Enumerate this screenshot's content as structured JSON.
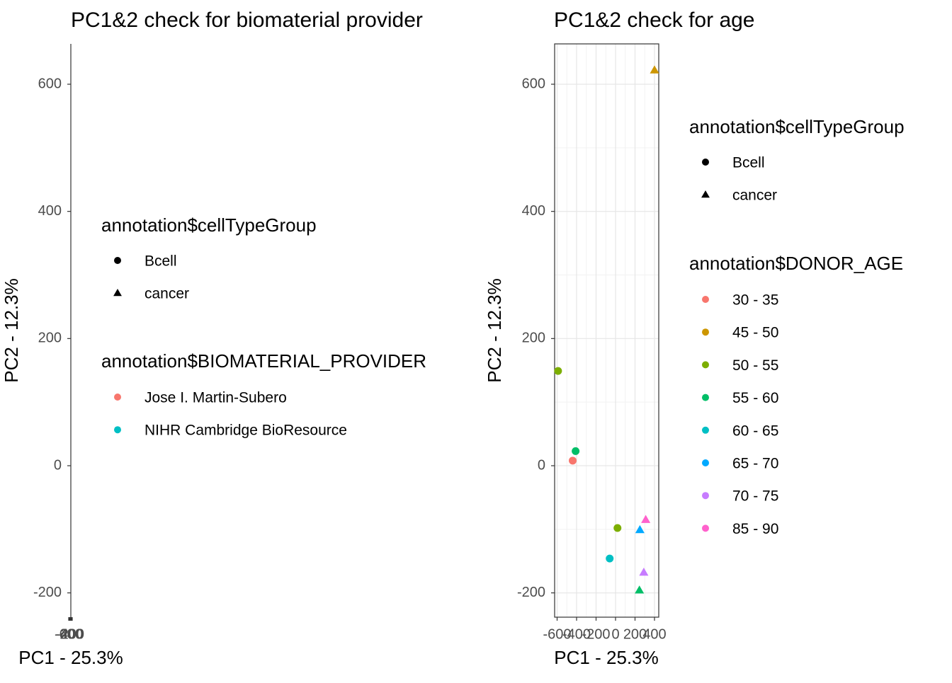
{
  "chart_data": [
    {
      "type": "scatter",
      "title": "PC1&2 check for biomaterial provider",
      "xlabel": "PC1 - 25.3%",
      "ylabel": "PC2 - 12.3%",
      "x_ticks": [
        "-600",
        "-400",
        "-200",
        "0",
        "200",
        "400"
      ],
      "y_ticks": [
        "-200",
        "0",
        "200",
        "400",
        "600"
      ],
      "ylim": [
        -237,
        662
      ],
      "grid": false,
      "legend_position": "right",
      "legends": [
        {
          "title": "annotation$cellTypeGroup",
          "entries": [
            {
              "label": "Bcell",
              "shape": "circle",
              "color": "#000000"
            },
            {
              "label": "cancer",
              "shape": "triangle",
              "color": "#000000"
            }
          ]
        },
        {
          "title": "annotation$BIOMATERIAL_PROVIDER",
          "entries": [
            {
              "label": "Jose I. Martin-Subero",
              "shape": "circle",
              "color": "#F8766D"
            },
            {
              "label": "NIHR Cambridge BioResource",
              "shape": "circle",
              "color": "#00BFC4"
            }
          ]
        }
      ],
      "points": []
    },
    {
      "type": "scatter",
      "title": "PC1&2 check for age",
      "xlabel": "PC1 - 25.3%",
      "ylabel": "PC2 - 12.3%",
      "x_ticks": [
        "-600",
        "-400",
        "-200",
        "0",
        "200",
        "400"
      ],
      "y_ticks": [
        "-200",
        "0",
        "200",
        "400",
        "600"
      ],
      "xlim": [
        -600,
        415
      ],
      "ylim": [
        -237,
        662
      ],
      "grid": true,
      "legend_position": "right",
      "legends": [
        {
          "title": "annotation$cellTypeGroup",
          "entries": [
            {
              "label": "Bcell",
              "shape": "circle",
              "color": "#000000"
            },
            {
              "label": "cancer",
              "shape": "triangle",
              "color": "#000000"
            }
          ]
        },
        {
          "title": "annotation$DONOR_AGE",
          "entries": [
            {
              "label": "30 - 35",
              "shape": "circle",
              "color": "#F8766D"
            },
            {
              "label": "45 - 50",
              "shape": "circle",
              "color": "#CD9600"
            },
            {
              "label": "50 - 55",
              "shape": "circle",
              "color": "#7CAE00"
            },
            {
              "label": "55 - 60",
              "shape": "circle",
              "color": "#00BE67"
            },
            {
              "label": "60 - 65",
              "shape": "circle",
              "color": "#00BFC4"
            },
            {
              "label": "65 - 70",
              "shape": "circle",
              "color": "#00A9FF"
            },
            {
              "label": "70 - 75",
              "shape": "circle",
              "color": "#C77CFF"
            },
            {
              "label": "85 - 90",
              "shape": "circle",
              "color": "#FF61CC"
            }
          ]
        }
      ],
      "points": [
        {
          "x": 400,
          "y": 622,
          "shape": "triangle",
          "color": "#CD9600"
        },
        {
          "x": -590,
          "y": 149,
          "shape": "circle",
          "color": "#7CAE00"
        },
        {
          "x": -410,
          "y": 23,
          "shape": "circle",
          "color": "#00BE67"
        },
        {
          "x": -440,
          "y": 8,
          "shape": "circle",
          "color": "#F8766D"
        },
        {
          "x": 20,
          "y": -98,
          "shape": "circle",
          "color": "#7CAE00"
        },
        {
          "x": -60,
          "y": -146,
          "shape": "circle",
          "color": "#00BFC4"
        },
        {
          "x": 310,
          "y": -85,
          "shape": "triangle",
          "color": "#FF61CC"
        },
        {
          "x": 250,
          "y": -101,
          "shape": "triangle",
          "color": "#00A9FF"
        },
        {
          "x": 290,
          "y": -168,
          "shape": "triangle",
          "color": "#C77CFF"
        },
        {
          "x": 245,
          "y": -196,
          "shape": "triangle",
          "color": "#00BE67"
        }
      ]
    }
  ]
}
